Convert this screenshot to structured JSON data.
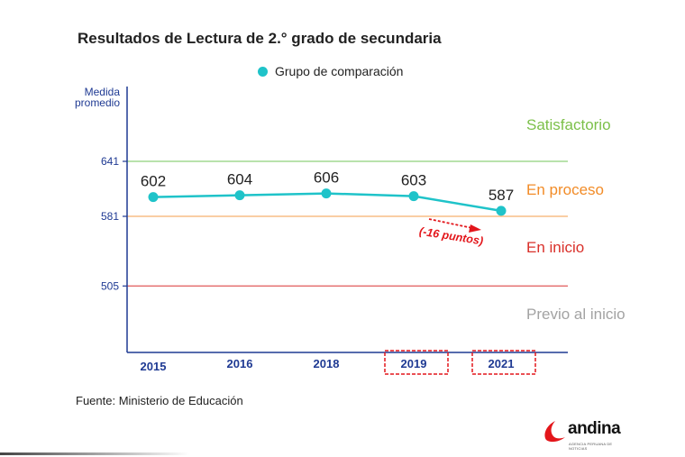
{
  "title": "Resultados de Lectura de 2.° grado de secundaria",
  "legend": {
    "label": "Grupo de comparación",
    "color": "#1fc3c9"
  },
  "source": "Fuente: Ministerio de Educación",
  "brand": {
    "name": "andina",
    "subtitle": "AGENCIA PERUANA DE NOTICIAS",
    "accent": "#e3161b"
  },
  "chart_data": {
    "type": "line",
    "ylabel": "Medida promedio",
    "ylabel_lines": [
      "Medida",
      "promedio"
    ],
    "yticks": [
      505,
      581,
      641
    ],
    "categories": [
      "2015",
      "2016",
      "2018",
      "2019",
      "2021"
    ],
    "highlighted_categories": [
      "2019",
      "2021"
    ],
    "series": [
      {
        "name": "Grupo de comparación",
        "values": [
          602,
          604,
          606,
          603,
          587
        ],
        "color": "#1fc3c9"
      }
    ],
    "thresholds": [
      {
        "value": 641,
        "color": "#8fd17a"
      },
      {
        "value": 581,
        "color": "#f6b06e"
      },
      {
        "value": 505,
        "color": "#e05a5a"
      }
    ],
    "bands": [
      {
        "label": "Satisfactorio",
        "color": "#7cc04a"
      },
      {
        "label": "En proceso",
        "color": "#f28c28"
      },
      {
        "label": "En inicio",
        "color": "#d9302a"
      },
      {
        "label": "Previo al inicio",
        "color": "#a3a3a3"
      }
    ],
    "annotation": {
      "text": "(-16 puntos)",
      "color": "#e3161b"
    },
    "grid": false
  }
}
